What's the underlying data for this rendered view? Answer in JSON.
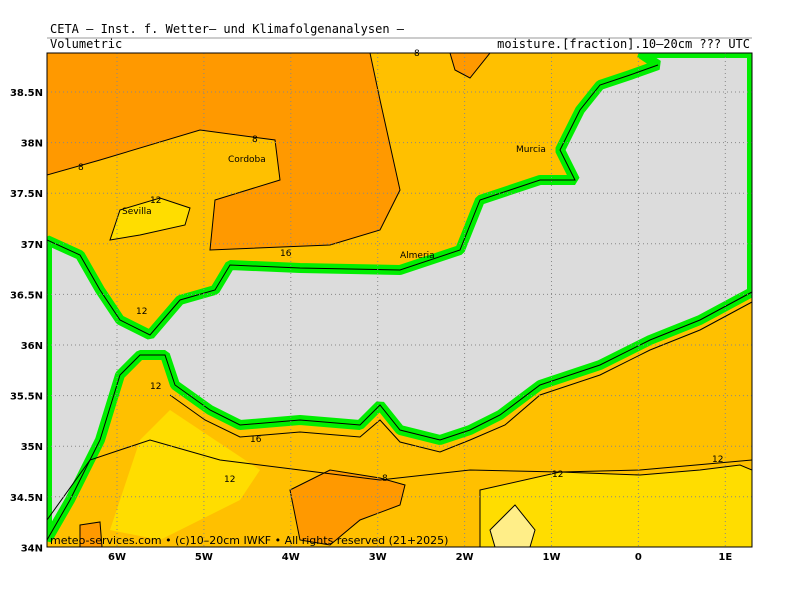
{
  "header": {
    "institute": "CETA – Inst. f. Wetter– und Klimafolgenanalysen –",
    "left_label": "Volumetric",
    "right_label": "moisture.[fraction].10–20cm ??? UTC"
  },
  "map": {
    "lat_labels": [
      "38.5N",
      "38N",
      "37.5N",
      "37N",
      "36.5N",
      "36N",
      "35.5N",
      "35N",
      "34.5N",
      "34N"
    ],
    "lon_labels": [
      "6W",
      "5W",
      "4W",
      "3W",
      "2W",
      "1W",
      "0",
      "1E"
    ],
    "places": [
      "Cordoba",
      "Sevilla",
      "Murcia",
      "Almeria"
    ],
    "contour_labels": [
      "8",
      "8",
      "8",
      "12",
      "16",
      "16",
      "12",
      "12",
      "12",
      "8",
      "12",
      "12"
    ]
  },
  "footer": "meteo-services.com • (c)10–20cm IWKF • All rights reserved (21+2025)"
}
